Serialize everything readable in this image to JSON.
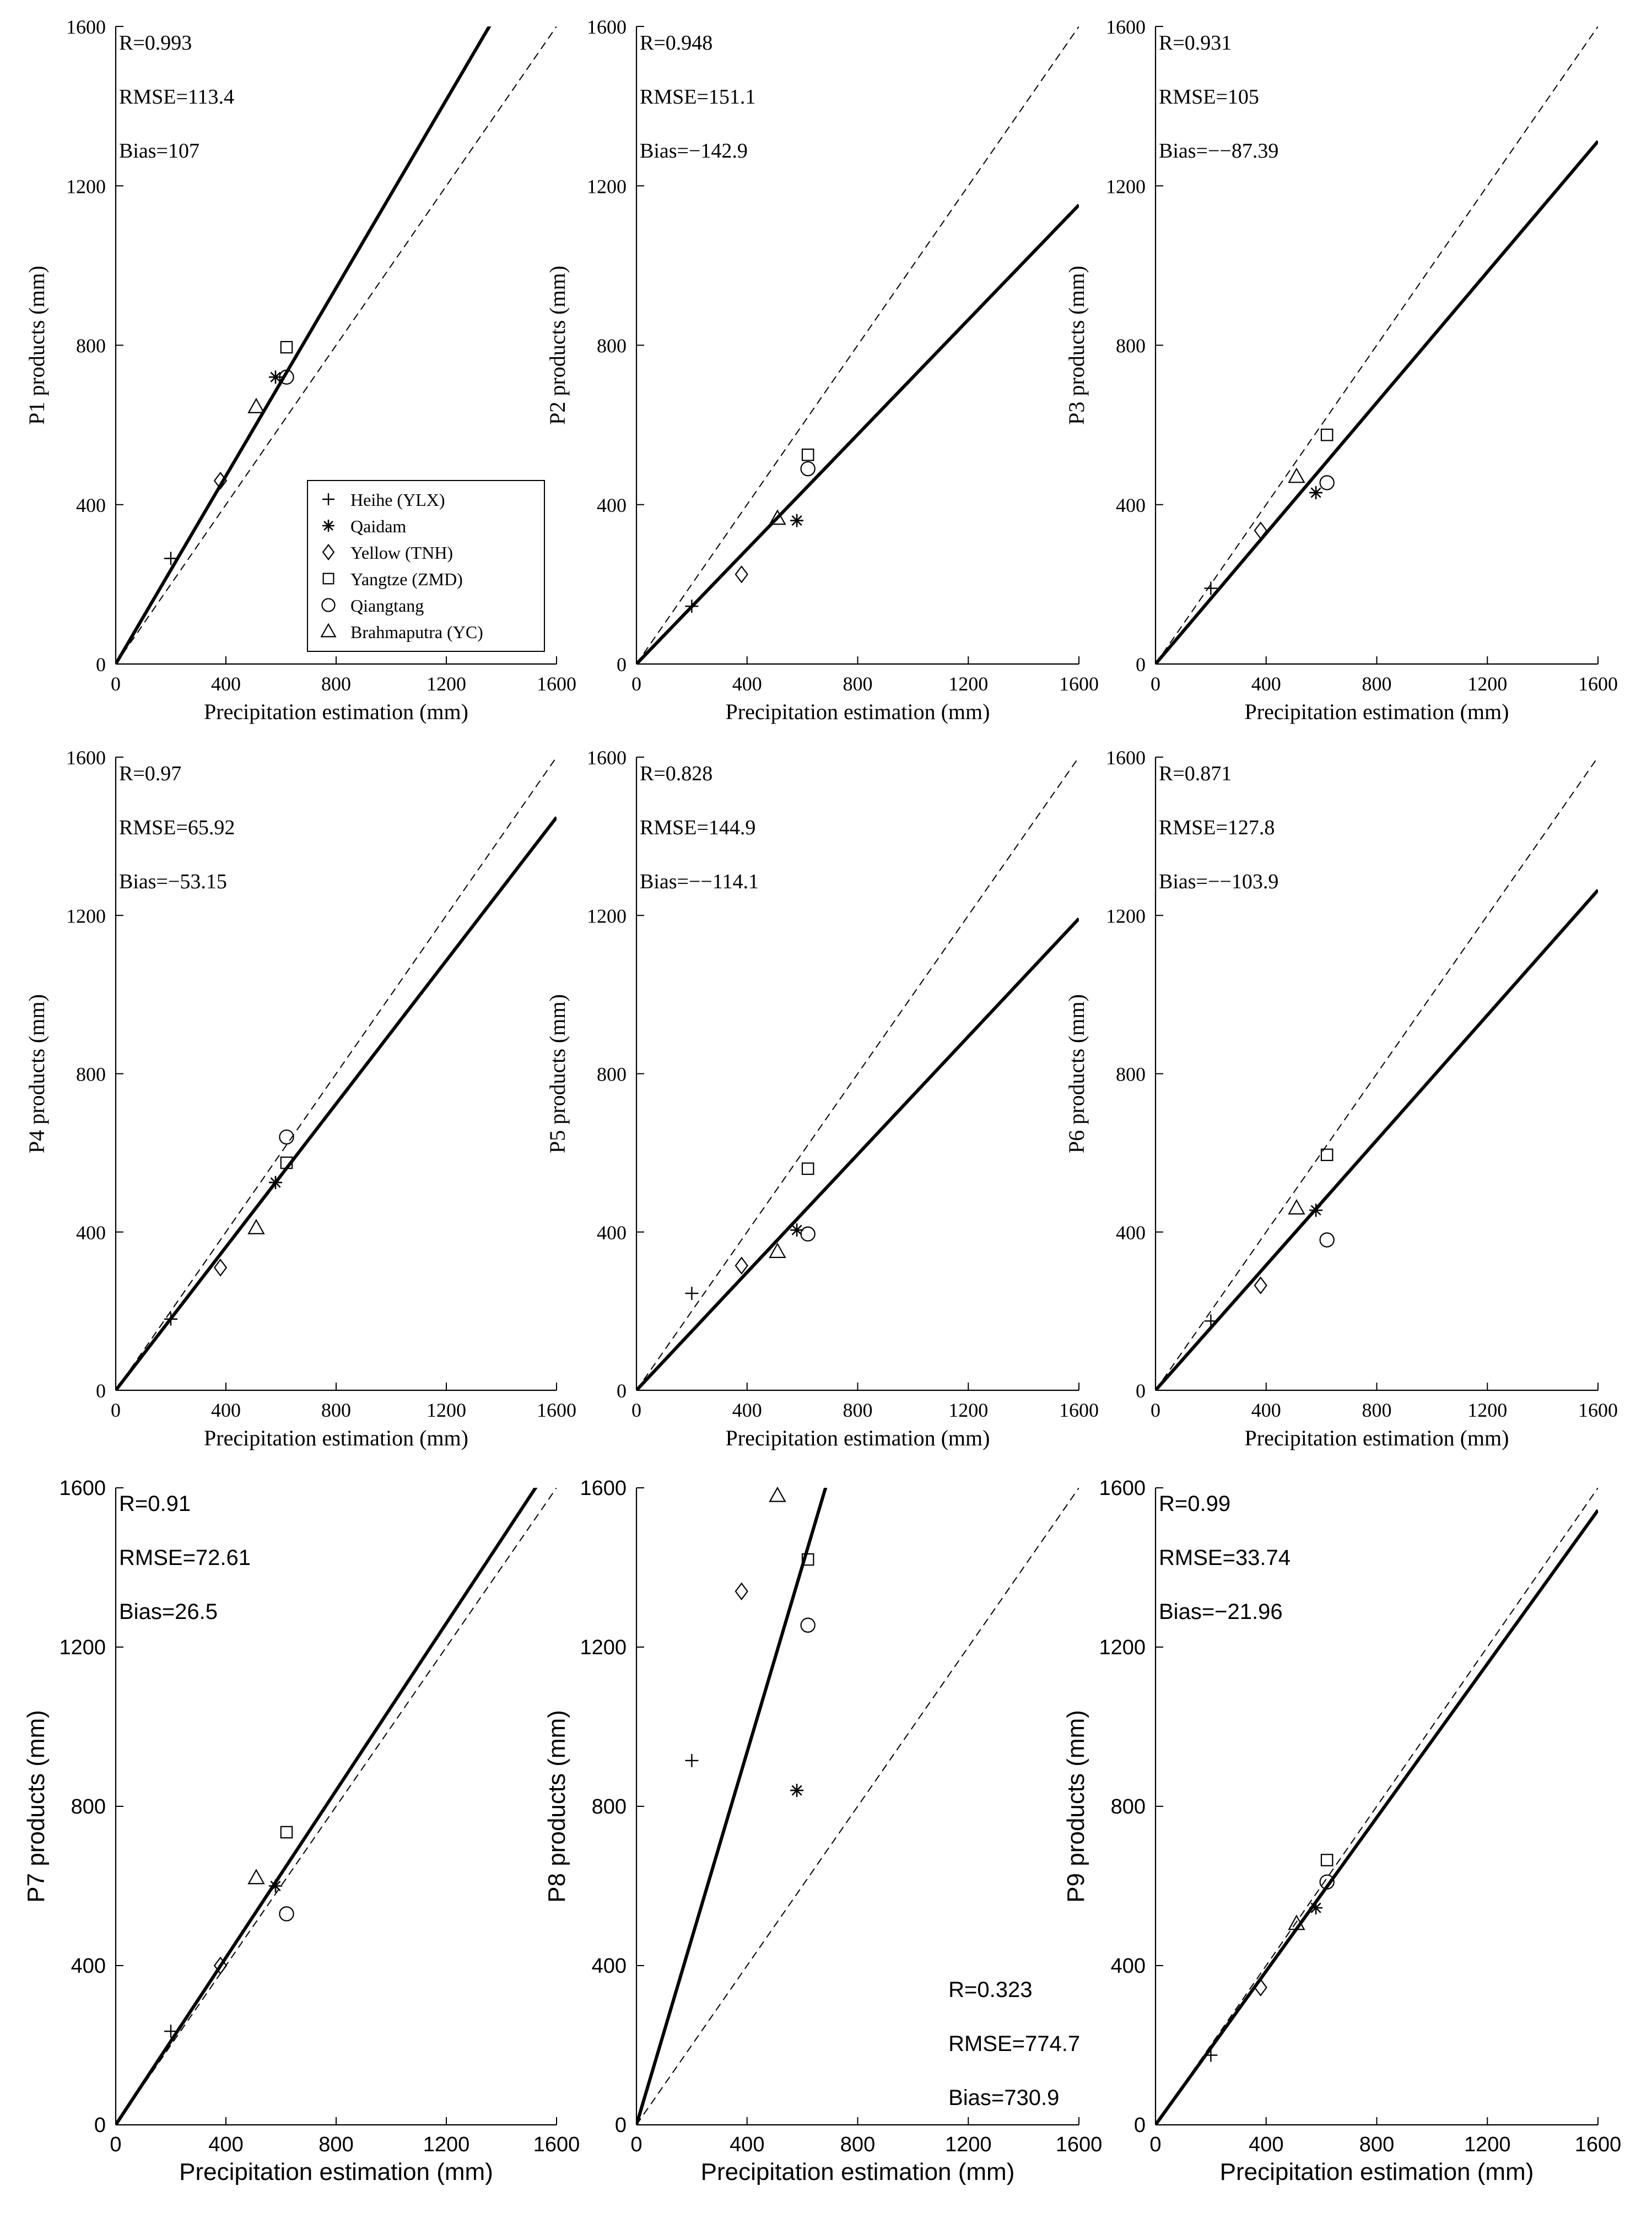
{
  "figure": {
    "shared_xlabel": "Precipitation estimation (mm)",
    "legend": [
      {
        "label": "Heihe (YLX)",
        "marker": "plus"
      },
      {
        "label": "Qaidam",
        "marker": "asterisk"
      },
      {
        "label": "Yellow (TNH)",
        "marker": "diamond"
      },
      {
        "label": "Yangtze (ZMD)",
        "marker": "square"
      },
      {
        "label": "Qiangtang",
        "marker": "circle"
      },
      {
        "label": "Brahmaputra (YC)",
        "marker": "triangle"
      }
    ]
  },
  "chart_data": [
    {
      "type": "scatter",
      "title": "",
      "xlabel": "Precipitation estimation (mm)",
      "ylabel": "P1 products (mm)",
      "xlim": [
        0,
        1600
      ],
      "ylim": [
        0,
        1600
      ],
      "xticks": [
        "0",
        "400",
        "800",
        "1200",
        "1600"
      ],
      "yticks": [
        "0",
        "400",
        "800",
        "1200",
        "1600"
      ],
      "stats": {
        "r": "R=0.993",
        "rmse": "RMSE=113.4",
        "bias": "Bias=107"
      },
      "fit_slope": 1.18,
      "points": [
        {
          "series": "Heihe (YLX)",
          "x": 200,
          "y": 265
        },
        {
          "series": "Qaidam",
          "x": 580,
          "y": 720
        },
        {
          "series": "Yellow (TNH)",
          "x": 380,
          "y": 460
        },
        {
          "series": "Yangtze (ZMD)",
          "x": 620,
          "y": 795
        },
        {
          "series": "Qiangtang",
          "x": 620,
          "y": 720
        },
        {
          "series": "Brahmaputra (YC)",
          "x": 510,
          "y": 645
        }
      ]
    },
    {
      "type": "scatter",
      "title": "",
      "xlabel": "Precipitation estimation (mm)",
      "ylabel": "P2 products (mm)",
      "xlim": [
        0,
        1600
      ],
      "ylim": [
        0,
        1600
      ],
      "xticks": [
        "0",
        "400",
        "800",
        "1200",
        "1600"
      ],
      "yticks": [
        "0",
        "400",
        "800",
        "1200",
        "1600"
      ],
      "stats": {
        "r": "R=0.948",
        "rmse": "RMSE=151.1",
        "bias": "Bias=−142.9"
      },
      "fit_slope": 0.72,
      "points": [
        {
          "series": "Heihe (YLX)",
          "x": 200,
          "y": 145
        },
        {
          "series": "Qaidam",
          "x": 580,
          "y": 360
        },
        {
          "series": "Yellow (TNH)",
          "x": 380,
          "y": 225
        },
        {
          "series": "Yangtze (ZMD)",
          "x": 620,
          "y": 525
        },
        {
          "series": "Qiangtang",
          "x": 620,
          "y": 490
        },
        {
          "series": "Brahmaputra (YC)",
          "x": 510,
          "y": 365
        }
      ]
    },
    {
      "type": "scatter",
      "title": "",
      "xlabel": "Precipitation estimation (mm)",
      "ylabel": "P3 products (mm)",
      "xlim": [
        0,
        1600
      ],
      "ylim": [
        0,
        1600
      ],
      "xticks": [
        "0",
        "400",
        "800",
        "1200",
        "1600"
      ],
      "yticks": [
        "0",
        "400",
        "800",
        "1200",
        "1600"
      ],
      "stats": {
        "r": "R=0.931",
        "rmse": "RMSE=105",
        "bias": "Bias=−−87.39"
      },
      "fit_slope": 0.82,
      "points": [
        {
          "series": "Heihe (YLX)",
          "x": 200,
          "y": 190
        },
        {
          "series": "Qaidam",
          "x": 580,
          "y": 430
        },
        {
          "series": "Yellow (TNH)",
          "x": 380,
          "y": 335
        },
        {
          "series": "Yangtze (ZMD)",
          "x": 620,
          "y": 575
        },
        {
          "series": "Qiangtang",
          "x": 620,
          "y": 455
        },
        {
          "series": "Brahmaputra (YC)",
          "x": 510,
          "y": 470
        }
      ]
    },
    {
      "type": "scatter",
      "title": "",
      "xlabel": "Precipitation estimation (mm)",
      "ylabel": "P4 products (mm)",
      "xlim": [
        0,
        1600
      ],
      "ylim": [
        0,
        1600
      ],
      "xticks": [
        "0",
        "400",
        "800",
        "1200",
        "1600"
      ],
      "yticks": [
        "0",
        "400",
        "800",
        "1200",
        "1600"
      ],
      "stats": {
        "r": "R=0.97",
        "rmse": "RMSE=65.92",
        "bias": "Bias=−53.15"
      },
      "fit_slope": 0.905,
      "points": [
        {
          "series": "Heihe (YLX)",
          "x": 200,
          "y": 180
        },
        {
          "series": "Qaidam",
          "x": 580,
          "y": 525
        },
        {
          "series": "Yellow (TNH)",
          "x": 380,
          "y": 310
        },
        {
          "series": "Yangtze (ZMD)",
          "x": 620,
          "y": 575
        },
        {
          "series": "Qiangtang",
          "x": 620,
          "y": 640
        },
        {
          "series": "Brahmaputra (YC)",
          "x": 510,
          "y": 410
        }
      ]
    },
    {
      "type": "scatter",
      "title": "",
      "xlabel": "Precipitation estimation (mm)",
      "ylabel": "P5 products (mm)",
      "xlim": [
        0,
        1600
      ],
      "ylim": [
        0,
        1600
      ],
      "xticks": [
        "0",
        "400",
        "800",
        "1200",
        "1600"
      ],
      "yticks": [
        "0",
        "400",
        "800",
        "1200",
        "1600"
      ],
      "stats": {
        "r": "R=0.828",
        "rmse": "RMSE=144.9",
        "bias": "Bias=−−114.1"
      },
      "fit_slope": 0.745,
      "points": [
        {
          "series": "Heihe (YLX)",
          "x": 200,
          "y": 245
        },
        {
          "series": "Qaidam",
          "x": 580,
          "y": 405
        },
        {
          "series": "Yellow (TNH)",
          "x": 380,
          "y": 315
        },
        {
          "series": "Yangtze (ZMD)",
          "x": 620,
          "y": 560
        },
        {
          "series": "Qiangtang",
          "x": 620,
          "y": 395
        },
        {
          "series": "Brahmaputra (YC)",
          "x": 510,
          "y": 350
        }
      ]
    },
    {
      "type": "scatter",
      "title": "",
      "xlabel": "Precipitation estimation (mm)",
      "ylabel": "P6 products (mm)",
      "xlim": [
        0,
        1600
      ],
      "ylim": [
        0,
        1600
      ],
      "xticks": [
        "0",
        "400",
        "800",
        "1200",
        "1600"
      ],
      "yticks": [
        "0",
        "400",
        "800",
        "1200",
        "1600"
      ],
      "stats": {
        "r": "R=0.871",
        "rmse": "RMSE=127.8",
        "bias": "Bias=−−103.9"
      },
      "fit_slope": 0.79,
      "points": [
        {
          "series": "Heihe (YLX)",
          "x": 200,
          "y": 175
        },
        {
          "series": "Qaidam",
          "x": 580,
          "y": 455
        },
        {
          "series": "Yellow (TNH)",
          "x": 380,
          "y": 265
        },
        {
          "series": "Yangtze (ZMD)",
          "x": 620,
          "y": 595
        },
        {
          "series": "Qiangtang",
          "x": 620,
          "y": 380
        },
        {
          "series": "Brahmaputra (YC)",
          "x": 510,
          "y": 460
        }
      ]
    },
    {
      "type": "scatter",
      "title": "",
      "xlabel": "Precipitation estimation (mm)",
      "ylabel": "P7 products (mm)",
      "xlim": [
        0,
        1600
      ],
      "ylim": [
        0,
        1600
      ],
      "xticks": [
        "0",
        "400",
        "800",
        "1200",
        "1600"
      ],
      "yticks": [
        "0",
        "400",
        "800",
        "1200",
        "1600"
      ],
      "stats": {
        "r": "R=0.91",
        "rmse": "RMSE=72.61",
        "bias": "Bias=26.5"
      },
      "fit_slope": 1.05,
      "points": [
        {
          "series": "Heihe (YLX)",
          "x": 200,
          "y": 235
        },
        {
          "series": "Qaidam",
          "x": 580,
          "y": 600
        },
        {
          "series": "Yellow (TNH)",
          "x": 380,
          "y": 400
        },
        {
          "series": "Yangtze (ZMD)",
          "x": 620,
          "y": 735
        },
        {
          "series": "Qiangtang",
          "x": 620,
          "y": 530
        },
        {
          "series": "Brahmaputra (YC)",
          "x": 510,
          "y": 620
        }
      ]
    },
    {
      "type": "scatter",
      "title": "",
      "xlabel": "Precipitation estimation (mm)",
      "ylabel": "P8 products (mm)",
      "xlim": [
        0,
        1600
      ],
      "ylim": [
        0,
        1600
      ],
      "xticks": [
        "0",
        "400",
        "800",
        "1200",
        "1600"
      ],
      "yticks": [
        "0",
        "400",
        "800",
        "1200",
        "1600"
      ],
      "stats": {
        "r": "R=0.323",
        "rmse": "RMSE=774.7",
        "bias": "Bias=730.9"
      },
      "stats_position": "bottom-right",
      "fit_slope": 2.34,
      "points": [
        {
          "series": "Heihe (YLX)",
          "x": 200,
          "y": 915
        },
        {
          "series": "Qaidam",
          "x": 580,
          "y": 840
        },
        {
          "series": "Yellow (TNH)",
          "x": 380,
          "y": 1340
        },
        {
          "series": "Yangtze (ZMD)",
          "x": 620,
          "y": 1420
        },
        {
          "series": "Qiangtang",
          "x": 620,
          "y": 1255
        },
        {
          "series": "Brahmaputra (YC)",
          "x": 510,
          "y": 1580
        }
      ]
    },
    {
      "type": "scatter",
      "title": "",
      "xlabel": "Precipitation estimation (mm)",
      "ylabel": "P9 products (mm)",
      "xlim": [
        0,
        1600
      ],
      "ylim": [
        0,
        1600
      ],
      "xticks": [
        "0",
        "400",
        "800",
        "1200",
        "1600"
      ],
      "yticks": [
        "0",
        "400",
        "800",
        "1200",
        "1600"
      ],
      "stats": {
        "r": "R=0.99",
        "rmse": "RMSE=33.74",
        "bias": "Bias=−21.96"
      },
      "fit_slope": 0.965,
      "points": [
        {
          "series": "Heihe (YLX)",
          "x": 200,
          "y": 175
        },
        {
          "series": "Qaidam",
          "x": 580,
          "y": 545
        },
        {
          "series": "Yellow (TNH)",
          "x": 380,
          "y": 345
        },
        {
          "series": "Yangtze (ZMD)",
          "x": 620,
          "y": 665
        },
        {
          "series": "Qiangtang",
          "x": 620,
          "y": 610
        },
        {
          "series": "Brahmaputra (YC)",
          "x": 510,
          "y": 505
        }
      ]
    }
  ]
}
